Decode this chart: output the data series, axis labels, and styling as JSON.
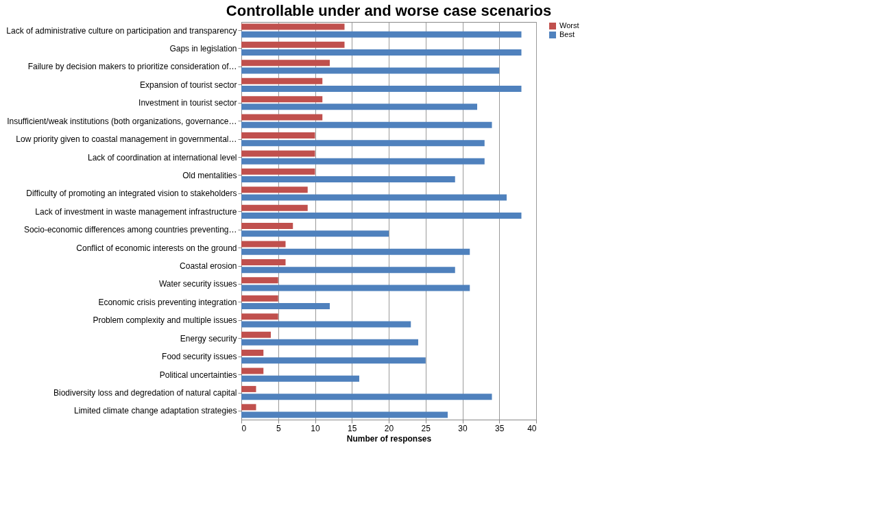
{
  "chart_data": {
    "type": "bar",
    "orientation": "horizontal",
    "title": "Controllable under and worse case scenarios",
    "xlabel": "Number of responses",
    "categories": [
      "Lack of administrative  culture on participation and transparency",
      "Gaps in legislation",
      "Failure by decision makers to prioritize consideration of…",
      "Expansion of tourist sector",
      "Investment in tourist sector",
      "Insufficient/weak institutions  (both organizations, governance…",
      "Low priority given to coastal management  in governmental…",
      "Lack of coordination at international  level",
      "Old mentalities",
      "Difficulty of promoting an integrated vision to stakeholders",
      "Lack of investment in waste management  infrastructure",
      "Socio-economic differences among countries preventing…",
      "Conflict of economic interests on the ground",
      "Coastal  erosion",
      "Water security issues",
      "Economic crisis preventing integration",
      "Problem complexity and multiple issues",
      "Energy security",
      "Food security issues",
      "Political uncertainties",
      "Biodiversity loss and degredation of natural capital",
      "Limited climate change adaptation  strategies"
    ],
    "series": [
      {
        "name": "Worst",
        "color": "#c0504d",
        "values": [
          14,
          14,
          12,
          11,
          11,
          11,
          10,
          10,
          10,
          9,
          9,
          7,
          6,
          6,
          5,
          5,
          5,
          4,
          3,
          3,
          2,
          2
        ]
      },
      {
        "name": "Best",
        "color": "#4f81bd",
        "values": [
          38,
          38,
          35,
          38,
          32,
          34,
          33,
          33,
          29,
          36,
          38,
          20,
          31,
          29,
          31,
          12,
          23,
          24,
          25,
          16,
          34,
          28
        ]
      }
    ],
    "xlim": [
      0,
      40
    ],
    "xticks": [
      0,
      5,
      10,
      15,
      20,
      25,
      30,
      35,
      40
    ],
    "grid": "x",
    "legend": "right"
  }
}
